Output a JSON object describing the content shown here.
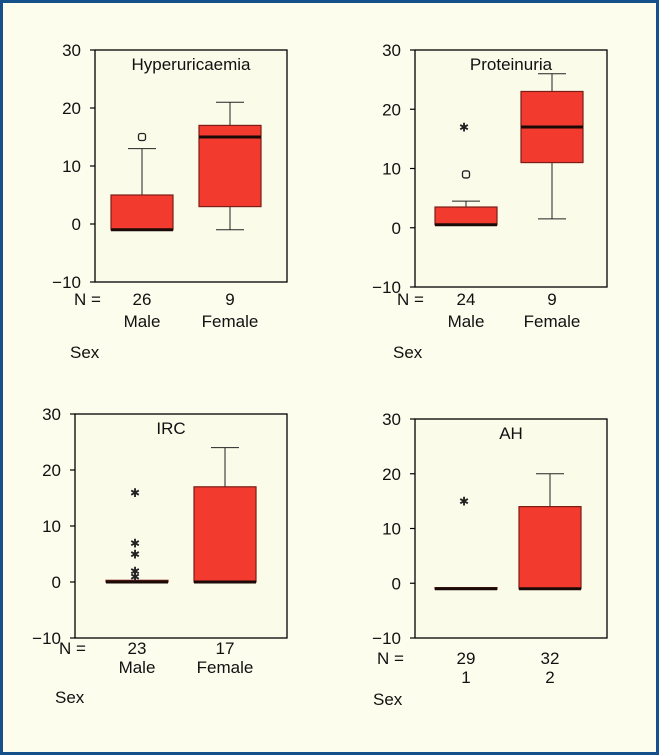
{
  "colors": {
    "frame_border": "#16508a",
    "page_bg": "#fdfdee",
    "plot_bg": "#fbfbea",
    "box_fill": "#f23a2e",
    "box_stroke": "#7a1d16",
    "median": "#1a0a08",
    "axis": "#000000"
  },
  "chart_data": [
    {
      "type": "boxplot",
      "title": "Hyperuricaemia",
      "xlabel": "Sex",
      "n_label": "N =",
      "ylim": [
        -10,
        30
      ],
      "yticks": [
        "30",
        "20",
        "10",
        "0",
        "−10"
      ],
      "ytick_values": [
        30,
        20,
        10,
        0,
        -10
      ],
      "groups": [
        {
          "n": "26",
          "label": "Male",
          "whisker_low": -1,
          "q1": -1,
          "median": -1,
          "q3": 5,
          "whisker_high": 13,
          "outliers": [
            {
              "value": 15,
              "marker": "circle"
            }
          ]
        },
        {
          "n": "9",
          "label": "Female",
          "whisker_low": -1,
          "q1": 3,
          "median": 15,
          "q3": 17,
          "whisker_high": 21,
          "outliers": []
        }
      ]
    },
    {
      "type": "boxplot",
      "title": "Proteinuria",
      "xlabel": "Sex",
      "n_label": "N =",
      "ylim": [
        -10,
        30
      ],
      "yticks": [
        "30",
        "20",
        "10",
        "0",
        "−10"
      ],
      "ytick_values": [
        30,
        20,
        10,
        0,
        -10
      ],
      "groups": [
        {
          "n": "24",
          "label": "Male",
          "whisker_low": 0.5,
          "q1": 0.5,
          "median": 0.5,
          "q3": 3.5,
          "whisker_high": 4.5,
          "outliers": [
            {
              "value": 17,
              "marker": "star"
            },
            {
              "value": 9,
              "marker": "circle"
            }
          ]
        },
        {
          "n": "9",
          "label": "Female",
          "whisker_low": 1.5,
          "q1": 11,
          "median": 17,
          "q3": 23,
          "whisker_high": 26,
          "outliers": []
        }
      ]
    },
    {
      "type": "boxplot",
      "title": "IRC",
      "xlabel": "Sex",
      "n_label": "N =",
      "ylim": [
        -10,
        30
      ],
      "yticks": [
        "30",
        "20",
        "10",
        "0",
        "−10"
      ],
      "ytick_values": [
        30,
        20,
        10,
        0,
        -10
      ],
      "groups": [
        {
          "n": "23",
          "label": "Male",
          "whisker_low": 0,
          "q1": 0,
          "median": 0,
          "q3": 0.3,
          "whisker_high": 0.3,
          "outliers": [
            {
              "value": 16,
              "marker": "star"
            },
            {
              "value": 7,
              "marker": "star"
            },
            {
              "value": 5,
              "marker": "star"
            },
            {
              "value": 2,
              "marker": "star"
            },
            {
              "value": 1,
              "marker": "star"
            }
          ]
        },
        {
          "n": "17",
          "label": "Female",
          "whisker_low": 0,
          "q1": 0,
          "median": 0,
          "q3": 17,
          "whisker_high": 24,
          "outliers": []
        }
      ]
    },
    {
      "type": "boxplot",
      "title": "AH",
      "xlabel": "Sex",
      "n_label": "N =",
      "ylim": [
        -10,
        30
      ],
      "yticks": [
        "30",
        "20",
        "10",
        "0",
        "−10"
      ],
      "ytick_values": [
        30,
        20,
        10,
        0,
        -10
      ],
      "groups": [
        {
          "n": "29",
          "label": "1",
          "whisker_low": -1,
          "q1": -1,
          "median": -1,
          "q3": -0.8,
          "whisker_high": -0.8,
          "outliers": [
            {
              "value": 15,
              "marker": "star"
            }
          ]
        },
        {
          "n": "32",
          "label": "2",
          "whisker_low": -1,
          "q1": -1,
          "median": -1,
          "q3": 14,
          "whisker_high": 20,
          "outliers": []
        }
      ]
    }
  ]
}
